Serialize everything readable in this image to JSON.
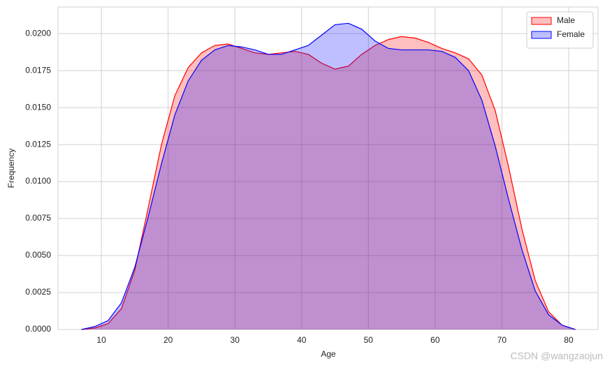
{
  "chart_data": {
    "type": "kde",
    "xlabel": "Age",
    "ylabel": "Frequency",
    "x": [
      7,
      9,
      11,
      13,
      15,
      17,
      19,
      21,
      23,
      25,
      27,
      29,
      31,
      33,
      35,
      37,
      39,
      41,
      43,
      45,
      47,
      49,
      51,
      53,
      55,
      57,
      59,
      61,
      63,
      65,
      67,
      69,
      71,
      73,
      75,
      77,
      79,
      81
    ],
    "series": [
      {
        "name": "Male",
        "color": "#ff0000",
        "values": [
          0,
          0.0001,
          0.0004,
          0.0014,
          0.004,
          0.0082,
          0.0125,
          0.0158,
          0.0177,
          0.0187,
          0.0192,
          0.0193,
          0.019,
          0.0187,
          0.0186,
          0.0187,
          0.0188,
          0.0186,
          0.018,
          0.0176,
          0.0178,
          0.0186,
          0.0192,
          0.0196,
          0.0198,
          0.0197,
          0.0194,
          0.019,
          0.0187,
          0.0183,
          0.0172,
          0.0148,
          0.011,
          0.0068,
          0.0033,
          0.0012,
          0.0003,
          0
        ]
      },
      {
        "name": "Female",
        "color": "#0000ff",
        "values": [
          0,
          0.0002,
          0.0006,
          0.0018,
          0.0042,
          0.0076,
          0.0112,
          0.0145,
          0.0168,
          0.0182,
          0.0189,
          0.0192,
          0.0191,
          0.0189,
          0.0186,
          0.0186,
          0.0189,
          0.0192,
          0.0199,
          0.0206,
          0.0207,
          0.0203,
          0.0195,
          0.019,
          0.0189,
          0.0189,
          0.0189,
          0.0188,
          0.0184,
          0.0175,
          0.0155,
          0.0124,
          0.0088,
          0.0054,
          0.0026,
          0.001,
          0.0003,
          0
        ]
      }
    ],
    "xlim": [
      3.5,
      84.4
    ],
    "ylim": [
      0,
      0.0218
    ],
    "xticks": [
      10,
      20,
      30,
      40,
      50,
      60,
      70,
      80
    ],
    "yticks": [
      {
        "value": 0,
        "label": "0.0000"
      },
      {
        "value": 0.0025,
        "label": "0.0025"
      },
      {
        "value": 0.005,
        "label": "0.0050"
      },
      {
        "value": 0.0075,
        "label": "0.0075"
      },
      {
        "value": 0.01,
        "label": "0.0100"
      },
      {
        "value": 0.0125,
        "label": "0.0125"
      },
      {
        "value": 0.015,
        "label": "0.0150"
      },
      {
        "value": 0.0175,
        "label": "0.0175"
      },
      {
        "value": 0.02,
        "label": "0.0200"
      }
    ],
    "grid": true,
    "legend": "upper right",
    "watermark": "CSDN @wangzaojun"
  }
}
